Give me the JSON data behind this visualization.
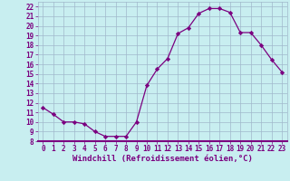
{
  "x": [
    0,
    1,
    2,
    3,
    4,
    5,
    6,
    7,
    8,
    9,
    10,
    11,
    12,
    13,
    14,
    15,
    16,
    17,
    18,
    19,
    20,
    21,
    22,
    23
  ],
  "y": [
    11.5,
    10.8,
    10.0,
    10.0,
    9.8,
    9.0,
    8.5,
    8.5,
    8.5,
    10.0,
    13.8,
    15.5,
    16.6,
    19.2,
    19.8,
    21.3,
    21.8,
    21.8,
    21.4,
    19.3,
    19.3,
    18.0,
    16.5,
    15.2
  ],
  "line_color": "#7b0080",
  "marker": "D",
  "marker_size": 2.2,
  "bg_color": "#c8eef0",
  "grid_color": "#a0b8cc",
  "xlabel": "Windchill (Refroidissement éolien,°C)",
  "xlim": [
    -0.5,
    23.5
  ],
  "ylim": [
    8,
    22.5
  ],
  "yticks": [
    8,
    9,
    10,
    11,
    12,
    13,
    14,
    15,
    16,
    17,
    18,
    19,
    20,
    21,
    22
  ],
  "xticks": [
    0,
    1,
    2,
    3,
    4,
    5,
    6,
    7,
    8,
    9,
    10,
    11,
    12,
    13,
    14,
    15,
    16,
    17,
    18,
    19,
    20,
    21,
    22,
    23
  ],
  "tick_fontsize": 5.5,
  "xlabel_fontsize": 6.5,
  "spine_color": "#7b0080",
  "axis_bottom_color": "#7b0080"
}
